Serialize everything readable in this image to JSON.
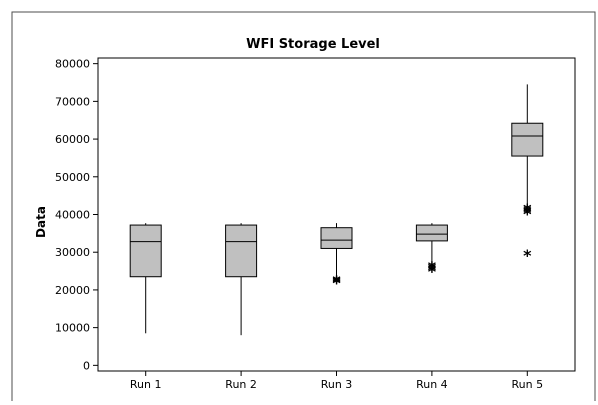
{
  "chart_data": {
    "type": "box",
    "title": "WFI Storage Level",
    "xlabel": "",
    "ylabel": "Data",
    "ylim": [
      -1500,
      81500
    ],
    "y_ticks": [
      0,
      10000,
      20000,
      30000,
      40000,
      50000,
      60000,
      70000,
      80000
    ],
    "y_tick_labels": [
      "0",
      "10000",
      "20000",
      "30000",
      "40000",
      "50000",
      "60000",
      "70000",
      "80000"
    ],
    "categories": [
      "Run 1",
      "Run 2",
      "Run 3",
      "Run 4",
      "Run 5"
    ],
    "boxes": [
      {
        "label": "Run 1",
        "whisker_low": 8500,
        "q1": 23500,
        "median": 32800,
        "q3": 37200,
        "whisker_high": 37700,
        "outliers": []
      },
      {
        "label": "Run 2",
        "whisker_low": 8000,
        "q1": 23500,
        "median": 32800,
        "q3": 37200,
        "whisker_high": 37700,
        "outliers": []
      },
      {
        "label": "Run 3",
        "whisker_low": 23500,
        "q1": 31000,
        "median": 33200,
        "q3": 36500,
        "whisker_high": 37700,
        "outliers": [
          22500,
          22800,
          23000
        ]
      },
      {
        "label": "Run 4",
        "whisker_low": 27000,
        "q1": 33000,
        "median": 34800,
        "q3": 37200,
        "whisker_high": 37700,
        "outliers": [
          25500,
          25900,
          26300,
          26700
        ]
      },
      {
        "label": "Run 5",
        "whisker_low": 42500,
        "q1": 55500,
        "median": 60800,
        "q3": 64200,
        "whisker_high": 74500,
        "outliers": [
          29800,
          40800,
          41200,
          41600,
          42000
        ]
      }
    ],
    "box_fill": "#c0c0c0",
    "grid": false
  }
}
